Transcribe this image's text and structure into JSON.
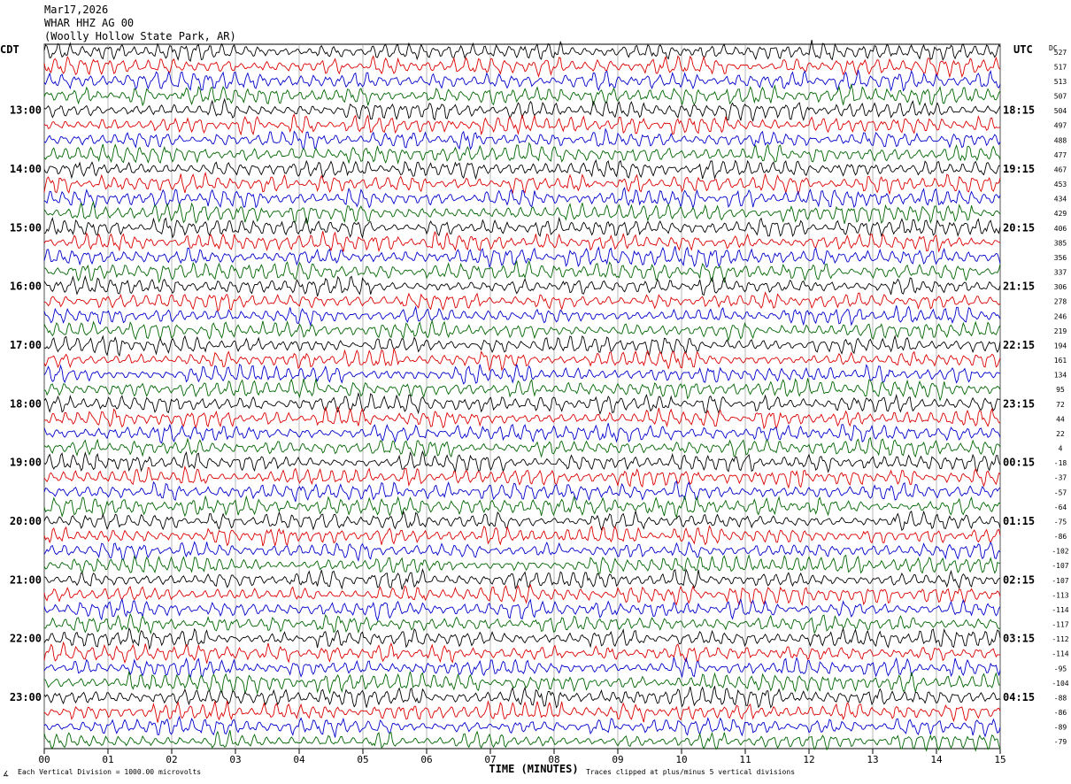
{
  "header": {
    "date": "Mar17,2026",
    "station": "WHAR HHZ AG 00",
    "location": "(Woolly Hollow State Park, AR)"
  },
  "left_tz": "CDT",
  "right_tz": "UTC",
  "dc_label": "DC",
  "footer": {
    "scale_note": "Each Vertical Division = 1000.00 microvolts",
    "xlabel": "TIME (MINUTES)",
    "clip_note": "Traces clipped at plus/minus 5 vertical divisions",
    "corner_mark": "∡"
  },
  "colors": {
    "trace": [
      "#000000",
      "#dd0000",
      "#0000cc",
      "#006600"
    ],
    "grid": "#888888"
  },
  "chart_data": {
    "type": "line",
    "title": "",
    "xlabel": "TIME (MINUTES)",
    "x_ticks": [
      "00",
      "01",
      "02",
      "03",
      "04",
      "05",
      "06",
      "07",
      "08",
      "09",
      "10",
      "11",
      "12",
      "13",
      "14",
      "15"
    ],
    "x_range": [
      0,
      15
    ],
    "rows": 48,
    "row_minutes": 15,
    "grid": true,
    "left_hour_labels": [
      {
        "row": 4,
        "label": "13:00"
      },
      {
        "row": 8,
        "label": "14:00"
      },
      {
        "row": 12,
        "label": "15:00"
      },
      {
        "row": 16,
        "label": "16:00"
      },
      {
        "row": 20,
        "label": "17:00"
      },
      {
        "row": 24,
        "label": "18:00"
      },
      {
        "row": 28,
        "label": "19:00"
      },
      {
        "row": 32,
        "label": "20:00"
      },
      {
        "row": 36,
        "label": "21:00"
      },
      {
        "row": 40,
        "label": "22:00"
      },
      {
        "row": 44,
        "label": "23:00"
      }
    ],
    "right_hour_labels": [
      {
        "row": 4,
        "label": "18:15"
      },
      {
        "row": 8,
        "label": "19:15"
      },
      {
        "row": 12,
        "label": "20:15"
      },
      {
        "row": 16,
        "label": "21:15"
      },
      {
        "row": 20,
        "label": "22:15"
      },
      {
        "row": 24,
        "label": "23:15"
      },
      {
        "row": 28,
        "label": "00:15"
      },
      {
        "row": 32,
        "label": "01:15"
      },
      {
        "row": 36,
        "label": "02:15"
      },
      {
        "row": 40,
        "label": "03:15"
      },
      {
        "row": 44,
        "label": "04:15"
      }
    ],
    "dc_offsets": [
      "527",
      "517",
      "513",
      "507",
      "504",
      "497",
      "488",
      "477",
      "467",
      "453",
      "434",
      "429",
      "406",
      "385",
      "356",
      "337",
      "306",
      "278",
      "246",
      "219",
      "194",
      "161",
      "134",
      "95",
      "72",
      "44",
      "22",
      "4",
      "-18",
      "-37",
      "-57",
      "-64",
      "-75",
      "-86",
      "-102",
      "-107",
      "-107",
      "-113",
      "-114",
      "-117",
      "-112",
      "-114",
      "-95",
      "-104",
      "-88",
      "-86",
      "-89",
      "-79"
    ]
  }
}
